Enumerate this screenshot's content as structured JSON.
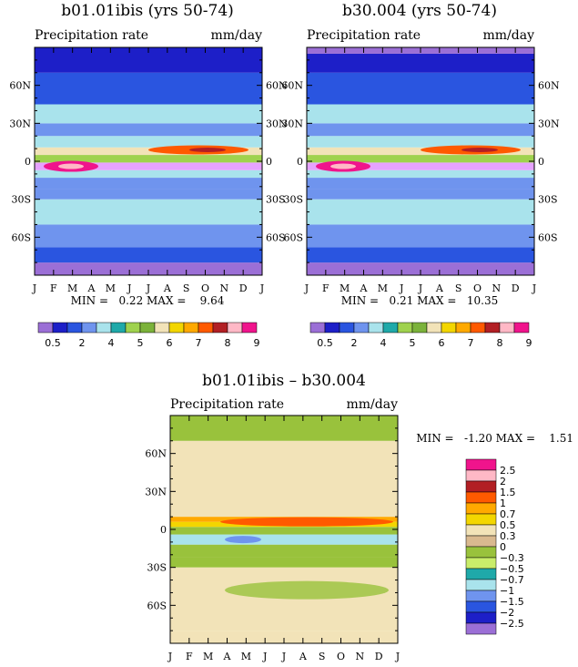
{
  "chart_data": [
    {
      "type": "heatmap",
      "id": "left",
      "title": "b01.01ibis (yrs 50-74)",
      "subtitle_left": "Precipitation rate",
      "subtitle_right": "mm/day",
      "x_ticks": [
        "J",
        "F",
        "M",
        "A",
        "M",
        "J",
        "J",
        "A",
        "S",
        "O",
        "N",
        "D",
        "J"
      ],
      "y_ticks": [
        "60N",
        "30N",
        "0",
        "30S",
        "60S"
      ],
      "y_tick_lat": [
        60,
        30,
        0,
        -30,
        -60
      ],
      "ylim": [
        -90,
        90
      ],
      "stats_label": "MIN =   0.22 MAX =    9.64",
      "min": 0.22,
      "max": 9.64,
      "colorbar_labels": [
        "0.5",
        "2",
        "4",
        "5",
        "6",
        "7",
        "8",
        "9"
      ],
      "colorbar_label_box": [
        1,
        3,
        5,
        7,
        9,
        11,
        13,
        15
      ],
      "bands": [
        {
          "lat": [
            -90,
            -80
          ],
          "color": "#9b6fd6"
        },
        {
          "lat": [
            -80,
            -68
          ],
          "color": "#2a55e0"
        },
        {
          "lat": [
            -68,
            -50
          ],
          "color": "#6f94ee"
        },
        {
          "lat": [
            -50,
            -30
          ],
          "color": "#a9e3ec"
        },
        {
          "lat": [
            -30,
            -22
          ],
          "color": "#6f94ee"
        },
        {
          "lat": [
            -22,
            -13
          ],
          "color": "#6f94ee"
        },
        {
          "lat": [
            -13,
            -7
          ],
          "color": "#a9e3ec"
        },
        {
          "lat": [
            -7,
            -1
          ],
          "color": "#e6a2ff"
        },
        {
          "lat": [
            -1,
            5
          ],
          "color": "#9fd24e"
        },
        {
          "lat": [
            5,
            11
          ],
          "color": "#f2e3b8"
        },
        {
          "lat": [
            11,
            20
          ],
          "color": "#a9e3ec"
        },
        {
          "lat": [
            20,
            30
          ],
          "color": "#6f94ee"
        },
        {
          "lat": [
            30,
            45
          ],
          "color": "#a9e3ec"
        },
        {
          "lat": [
            45,
            70
          ],
          "color": "#2a55e0"
        },
        {
          "lat": [
            70,
            90
          ],
          "color": "#1d1fc8"
        }
      ]
    },
    {
      "type": "heatmap",
      "id": "right",
      "title": "b30.004 (yrs 50-74)",
      "subtitle_left": "Precipitation rate",
      "subtitle_right": "mm/day",
      "x_ticks": [
        "J",
        "F",
        "M",
        "A",
        "M",
        "J",
        "J",
        "A",
        "S",
        "O",
        "N",
        "D",
        "J"
      ],
      "y_ticks": [
        "60N",
        "30N",
        "0",
        "30S",
        "60S"
      ],
      "y_tick_lat": [
        60,
        30,
        0,
        -30,
        -60
      ],
      "ylim": [
        -90,
        90
      ],
      "stats_label": "MIN =   0.21 MAX =   10.35",
      "min": 0.21,
      "max": 10.35,
      "colorbar_labels": [
        "0.5",
        "2",
        "4",
        "5",
        "6",
        "7",
        "8",
        "9"
      ],
      "colorbar_label_box": [
        1,
        3,
        5,
        7,
        9,
        11,
        13,
        15
      ],
      "bands": [
        {
          "lat": [
            -90,
            -80
          ],
          "color": "#9b6fd6"
        },
        {
          "lat": [
            -80,
            -68
          ],
          "color": "#2a55e0"
        },
        {
          "lat": [
            -68,
            -50
          ],
          "color": "#6f94ee"
        },
        {
          "lat": [
            -50,
            -30
          ],
          "color": "#a9e3ec"
        },
        {
          "lat": [
            -30,
            -22
          ],
          "color": "#6f94ee"
        },
        {
          "lat": [
            -22,
            -13
          ],
          "color": "#6f94ee"
        },
        {
          "lat": [
            -13,
            -7
          ],
          "color": "#a9e3ec"
        },
        {
          "lat": [
            -7,
            -1
          ],
          "color": "#e6a2ff"
        },
        {
          "lat": [
            -1,
            5
          ],
          "color": "#9fd24e"
        },
        {
          "lat": [
            5,
            11
          ],
          "color": "#f2e3b8"
        },
        {
          "lat": [
            11,
            20
          ],
          "color": "#a9e3ec"
        },
        {
          "lat": [
            20,
            30
          ],
          "color": "#6f94ee"
        },
        {
          "lat": [
            30,
            45
          ],
          "color": "#a9e3ec"
        },
        {
          "lat": [
            45,
            70
          ],
          "color": "#2a55e0"
        },
        {
          "lat": [
            70,
            85
          ],
          "color": "#1d1fc8"
        },
        {
          "lat": [
            85,
            90
          ],
          "color": "#9b6fd6"
        }
      ]
    },
    {
      "type": "heatmap",
      "id": "diff",
      "title": "b01.01ibis – b30.004",
      "subtitle_left": "Precipitation rate",
      "subtitle_right": "mm/day",
      "x_ticks": [
        "J",
        "F",
        "M",
        "A",
        "M",
        "J",
        "J",
        "A",
        "S",
        "O",
        "N",
        "D",
        "J"
      ],
      "y_ticks": [
        "60N",
        "30N",
        "0",
        "30S",
        "60S"
      ],
      "y_tick_lat": [
        60,
        30,
        0,
        -30,
        -60
      ],
      "ylim": [
        -90,
        90
      ],
      "stats_label": "MIN =   -1.20 MAX =    1.51",
      "min": -1.2,
      "max": 1.51,
      "colorbar_labels": [
        "2.5",
        "2",
        "1.5",
        "1",
        "0.7",
        "0.5",
        "0.3",
        "0",
        "−0.3",
        "−0.5",
        "−0.7",
        "−1",
        "−1.5",
        "−2",
        "−2.5"
      ],
      "bands": [
        {
          "lat": [
            -90,
            -80
          ],
          "color": "#f2e3b8"
        },
        {
          "lat": [
            -80,
            -30
          ],
          "color": "#f2e3b8"
        },
        {
          "lat": [
            -30,
            -22
          ],
          "color": "#99c23c"
        },
        {
          "lat": [
            -22,
            -12
          ],
          "color": "#99c23c"
        },
        {
          "lat": [
            -12,
            -4
          ],
          "color": "#a9e3ec"
        },
        {
          "lat": [
            -4,
            2
          ],
          "color": "#99c23c"
        },
        {
          "lat": [
            2,
            6
          ],
          "color": "#f3d600"
        },
        {
          "lat": [
            6,
            10
          ],
          "color": "#ffa900"
        },
        {
          "lat": [
            10,
            18
          ],
          "color": "#f2e3b8"
        },
        {
          "lat": [
            18,
            70
          ],
          "color": "#f2e3b8"
        },
        {
          "lat": [
            70,
            90
          ],
          "color": "#99c23c"
        }
      ]
    }
  ],
  "colors": {
    "precip_scale": [
      "#9b6fd6",
      "#1d1fc8",
      "#2a55e0",
      "#6f94ee",
      "#a9e3ec",
      "#1fa9a9",
      "#9fd24e",
      "#7bb23a",
      "#f2e3b8",
      "#f3d600",
      "#ffa900",
      "#ff5a00",
      "#b21f24",
      "#ffb8c6",
      "#f0148c"
    ],
    "diff_scale": [
      "#f0148c",
      "#ffb8c6",
      "#b21f24",
      "#ff5a00",
      "#ffa900",
      "#f3d600",
      "#f2e3b8",
      "#d9b98f",
      "#99c23c",
      "#c9ed6a",
      "#1fa9a9",
      "#a9e3ec",
      "#6f94ee",
      "#2a55e0",
      "#1d1fc8",
      "#9b6fd6"
    ]
  }
}
